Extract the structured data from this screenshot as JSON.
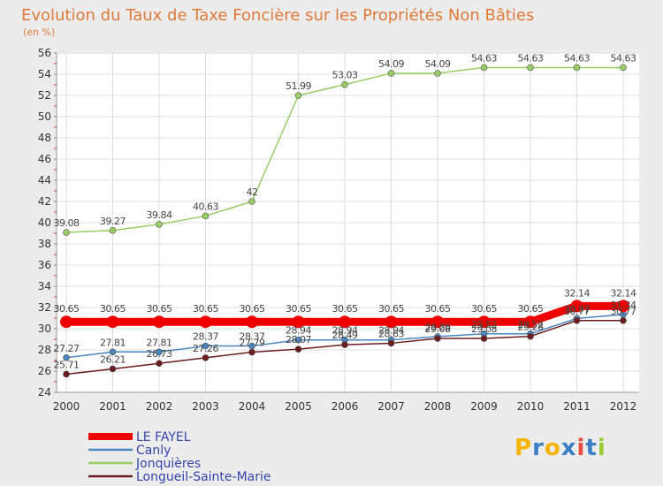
{
  "chart_data": {
    "type": "line",
    "title": "Evolution du Taux de Taxe Foncière sur les Propriétés Non Bâties",
    "subtitle": "(en %)",
    "xlabel": "",
    "ylabel": "",
    "ylim": [
      24,
      56
    ],
    "ytick_step": 2,
    "categories": [
      "2000",
      "2001",
      "2002",
      "2003",
      "2004",
      "2005",
      "2006",
      "2007",
      "2008",
      "2009",
      "2010",
      "2011",
      "2012"
    ],
    "series": [
      {
        "name": "LE FAYEL",
        "color": "#ee0000",
        "values": [
          30.65,
          30.65,
          30.65,
          30.65,
          30.65,
          30.65,
          30.65,
          30.65,
          30.65,
          30.65,
          30.65,
          32.14,
          32.14
        ],
        "labels": [
          "30.65",
          "30.65",
          "30.65",
          "30.65",
          "30.65",
          "30.65",
          "30.65",
          "30.65",
          "30.65",
          "30.65",
          "30.65",
          "32.14",
          "32.14"
        ]
      },
      {
        "name": "Canly",
        "color": "#4a86c0",
        "values": [
          27.27,
          27.81,
          27.81,
          28.37,
          28.37,
          28.94,
          28.94,
          28.94,
          29.26,
          29.52,
          29.52,
          30.97,
          31.34
        ],
        "labels": [
          "27.27",
          "27.81",
          "27.81",
          "28.37",
          "28.37",
          "28.94",
          "28.94",
          "28.94",
          "29.26",
          "29.52",
          "29.52",
          "30.97",
          "31.34"
        ]
      },
      {
        "name": "Jonquières",
        "color": "#99cc66",
        "values": [
          39.08,
          39.27,
          39.84,
          40.63,
          42,
          51.99,
          53.03,
          54.09,
          54.09,
          54.63,
          54.63,
          54.63,
          54.63
        ],
        "labels": [
          "39.08",
          "39.27",
          "39.84",
          "40.63",
          "42",
          "51.99",
          "53.03",
          "54.09",
          "54.09",
          "54.63",
          "54.63",
          "54.63",
          "54.63"
        ]
      },
      {
        "name": "Longueil-Sainte-Marie",
        "color": "#6b1d1d",
        "values": [
          25.71,
          26.21,
          26.73,
          27.26,
          27.79,
          28.07,
          28.49,
          28.63,
          29.08,
          29.08,
          29.28,
          30.77,
          30.77
        ],
        "labels": [
          "25.71",
          "26.21",
          "26.73",
          "27.26",
          "27.79",
          "28.07",
          "28.49",
          "28.63",
          "29.08",
          "29.08",
          "29.28",
          "30.77",
          "30.77"
        ]
      }
    ]
  },
  "brand": {
    "letters": [
      "P",
      "r",
      "o",
      "x",
      "i",
      "t",
      "i"
    ],
    "colors": [
      "#f4b400",
      "#3a7ec6",
      "#f4b400",
      "#3a7ec6",
      "#e84c3d",
      "#3a7ec6",
      "#99cc33"
    ]
  }
}
